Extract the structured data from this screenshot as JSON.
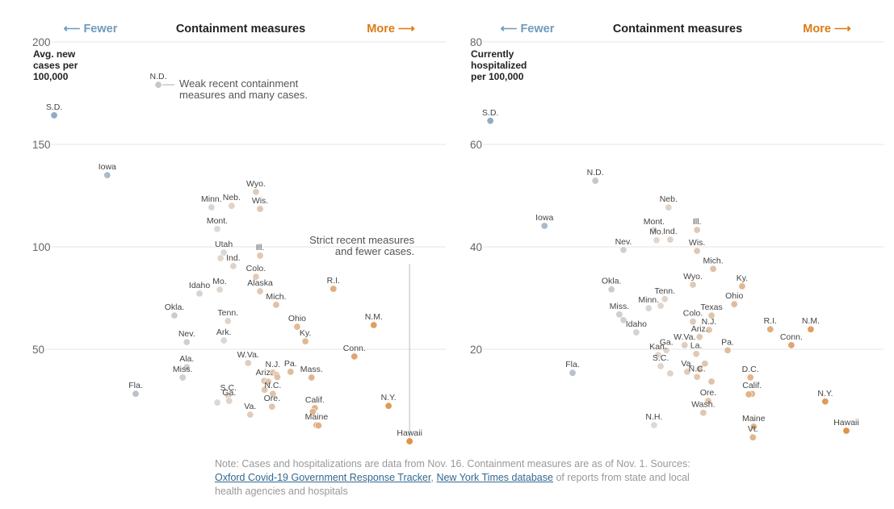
{
  "chart_data": [
    {
      "type": "scatter",
      "title": "Containment measures",
      "fewer_label": "⟵ Fewer",
      "more_label": "More ⟶",
      "xlabel": "Containment measures",
      "ylabel": "Avg. new cases per 100,000",
      "ylabel_lines": [
        "Avg. new",
        "cases per",
        "100,000"
      ],
      "ylim": [
        0,
        200
      ],
      "yticks": [
        50,
        100,
        150,
        200
      ],
      "xlim": [
        0,
        100
      ],
      "grid": true,
      "annotations": [
        {
          "lines": [
            "Weak recent containment",
            "measures and many cases."
          ],
          "anchor": "N.D.",
          "style": "left"
        },
        {
          "lines": [
            "Strict recent measures",
            "and fewer cases."
          ],
          "anchor": "Hawaii",
          "style": "vertical"
        }
      ],
      "points": [
        {
          "label": "S.D.",
          "x": 5.3,
          "y": 164.2,
          "show": true
        },
        {
          "label": "N.D.",
          "x": 30.6,
          "y": 179.1,
          "show": true
        },
        {
          "label": "Iowa",
          "x": 18.2,
          "y": 135.0,
          "show": true
        },
        {
          "label": "Minn.",
          "x": 43.5,
          "y": 119.3,
          "show": true
        },
        {
          "label": "Neb.",
          "x": 48.4,
          "y": 120.0,
          "show": true
        },
        {
          "label": "Wyo.",
          "x": 54.3,
          "y": 126.8,
          "show": true
        },
        {
          "label": "Wis.",
          "x": 55.3,
          "y": 118.5,
          "show": true
        },
        {
          "label": "Mont.",
          "x": 44.9,
          "y": 108.7,
          "show": true
        },
        {
          "label": "Utah",
          "x": 46.5,
          "y": 97.2,
          "show": true
        },
        {
          "label": "",
          "x": 45.7,
          "y": 94.5,
          "show": false
        },
        {
          "label": "Ind.",
          "x": 48.8,
          "y": 90.6,
          "show": true
        },
        {
          "label": "Ill.",
          "x": 55.3,
          "y": 95.7,
          "show": true
        },
        {
          "label": "Colo.",
          "x": 54.3,
          "y": 85.4,
          "show": true
        },
        {
          "label": "Alaska",
          "x": 55.3,
          "y": 78.3,
          "show": true
        },
        {
          "label": "Mo.",
          "x": 45.5,
          "y": 79.1,
          "show": true
        },
        {
          "label": "Idaho",
          "x": 40.6,
          "y": 77.2,
          "show": true
        },
        {
          "label": "Mich.",
          "x": 59.2,
          "y": 71.7,
          "show": true
        },
        {
          "label": "Okla.",
          "x": 34.5,
          "y": 66.5,
          "show": true
        },
        {
          "label": "Tenn.",
          "x": 47.5,
          "y": 63.8,
          "show": true
        },
        {
          "label": "Ohio",
          "x": 64.3,
          "y": 61.0,
          "show": true
        },
        {
          "label": "Ky.",
          "x": 66.3,
          "y": 53.9,
          "show": true
        },
        {
          "label": "R.I.",
          "x": 73.1,
          "y": 79.5,
          "show": true
        },
        {
          "label": "N.M.",
          "x": 82.9,
          "y": 61.8,
          "show": true
        },
        {
          "label": "Nev.",
          "x": 37.5,
          "y": 53.5,
          "show": true
        },
        {
          "label": "Ark.",
          "x": 46.5,
          "y": 54.3,
          "show": true
        },
        {
          "label": "Conn.",
          "x": 78.2,
          "y": 46.5,
          "show": true
        },
        {
          "label": "Ala.",
          "x": 37.5,
          "y": 41.3,
          "show": true
        },
        {
          "label": "Miss.",
          "x": 36.5,
          "y": 36.2,
          "show": true
        },
        {
          "label": "W.Va.",
          "x": 52.4,
          "y": 43.3,
          "show": true
        },
        {
          "label": "N.J.",
          "x": 58.4,
          "y": 38.6,
          "show": true
        },
        {
          "label": "",
          "x": 59.3,
          "y": 37.5,
          "show": false
        },
        {
          "label": "Pa.",
          "x": 62.7,
          "y": 39.0,
          "show": true
        },
        {
          "label": "Mass.",
          "x": 67.8,
          "y": 36.2,
          "show": true
        },
        {
          "label": "Ariz.",
          "x": 56.3,
          "y": 34.6,
          "show": true
        },
        {
          "label": "",
          "x": 57.3,
          "y": 34.2,
          "show": false
        },
        {
          "label": "",
          "x": 59.5,
          "y": 36.4,
          "show": false
        },
        {
          "label": "N.C.",
          "x": 58.4,
          "y": 28.3,
          "show": true
        },
        {
          "label": "",
          "x": 56.4,
          "y": 30.2,
          "show": false
        },
        {
          "label": "Fla.",
          "x": 25.1,
          "y": 28.3,
          "show": true
        },
        {
          "label": "S.C.",
          "x": 47.6,
          "y": 27.2,
          "show": true
        },
        {
          "label": "Ga.",
          "x": 47.8,
          "y": 24.8,
          "show": true
        },
        {
          "label": "",
          "x": 44.9,
          "y": 24.0,
          "show": false
        },
        {
          "label": "Ore.",
          "x": 58.2,
          "y": 22.0,
          "show": true
        },
        {
          "label": "Calif.",
          "x": 68.6,
          "y": 21.3,
          "show": true
        },
        {
          "label": "",
          "x": 68.1,
          "y": 19.5,
          "show": false
        },
        {
          "label": "N.Y.",
          "x": 86.5,
          "y": 22.4,
          "show": true
        },
        {
          "label": "Va.",
          "x": 52.9,
          "y": 18.1,
          "show": true
        },
        {
          "label": "Maine",
          "x": 69.0,
          "y": 13.0,
          "show": true
        },
        {
          "label": "",
          "x": 69.5,
          "y": 12.8,
          "show": false
        },
        {
          "label": "Hawaii",
          "x": 91.6,
          "y": 5.1,
          "show": true
        }
      ]
    },
    {
      "type": "scatter",
      "title": "Containment measures",
      "fewer_label": "⟵ Fewer",
      "more_label": "More ⟶",
      "xlabel": "Containment measures",
      "ylabel": "Currently hospitalized per 100,000",
      "ylabel_lines": [
        "Currently",
        "hospitalized",
        "per 100,000"
      ],
      "ylim": [
        0,
        80
      ],
      "yticks": [
        20,
        40,
        60,
        80
      ],
      "xlim": [
        0,
        100
      ],
      "grid": true,
      "annotations": [],
      "points": [
        {
          "label": "S.D.",
          "x": 5.3,
          "y": 64.6,
          "show": true
        },
        {
          "label": "N.D.",
          "x": 30.7,
          "y": 52.9,
          "show": true
        },
        {
          "label": "Iowa",
          "x": 18.4,
          "y": 44.1,
          "show": true
        },
        {
          "label": "Neb.",
          "x": 48.4,
          "y": 47.7,
          "show": true
        },
        {
          "label": "Mont.",
          "x": 44.9,
          "y": 43.3,
          "show": true
        },
        {
          "label": "Ill.",
          "x": 55.3,
          "y": 43.3,
          "show": true
        },
        {
          "label": "Mo.",
          "x": 45.5,
          "y": 41.3,
          "show": true
        },
        {
          "label": "Ind.",
          "x": 48.8,
          "y": 41.4,
          "show": true
        },
        {
          "label": "Nev.",
          "x": 37.5,
          "y": 39.4,
          "show": true
        },
        {
          "label": "Wis.",
          "x": 55.3,
          "y": 39.2,
          "show": true
        },
        {
          "label": "Mich.",
          "x": 59.2,
          "y": 35.7,
          "show": true
        },
        {
          "label": "Wyo.",
          "x": 54.3,
          "y": 32.6,
          "show": true
        },
        {
          "label": "Ky.",
          "x": 66.2,
          "y": 32.3,
          "show": true
        },
        {
          "label": "Okla.",
          "x": 34.6,
          "y": 31.7,
          "show": true
        },
        {
          "label": "Tenn.",
          "x": 47.5,
          "y": 29.8,
          "show": true
        },
        {
          "label": "Minn.",
          "x": 43.6,
          "y": 28.0,
          "show": true
        },
        {
          "label": "",
          "x": 46.5,
          "y": 28.5,
          "show": false
        },
        {
          "label": "Ohio",
          "x": 64.3,
          "y": 28.8,
          "show": true
        },
        {
          "label": "Miss.",
          "x": 36.5,
          "y": 26.8,
          "show": true
        },
        {
          "label": "",
          "x": 37.5,
          "y": 25.7,
          "show": false
        },
        {
          "label": "Texas",
          "x": 58.8,
          "y": 26.6,
          "show": true
        },
        {
          "label": "Colo.",
          "x": 54.3,
          "y": 25.4,
          "show": true
        },
        {
          "label": "N.J.",
          "x": 58.2,
          "y": 23.8,
          "show": true
        },
        {
          "label": "Idaho",
          "x": 40.6,
          "y": 23.3,
          "show": true
        },
        {
          "label": "Ariz.",
          "x": 55.9,
          "y": 22.4,
          "show": true
        },
        {
          "label": "R.I.",
          "x": 73.0,
          "y": 23.9,
          "show": true
        },
        {
          "label": "N.M.",
          "x": 82.8,
          "y": 23.9,
          "show": true
        },
        {
          "label": "W.Va.",
          "x": 52.3,
          "y": 20.8,
          "show": true
        },
        {
          "label": "Ga.",
          "x": 47.9,
          "y": 19.8,
          "show": true
        },
        {
          "label": "Conn.",
          "x": 78.1,
          "y": 20.8,
          "show": true
        },
        {
          "label": "Pa.",
          "x": 62.7,
          "y": 19.8,
          "show": true
        },
        {
          "label": "Kan.",
          "x": 45.9,
          "y": 18.9,
          "show": true
        },
        {
          "label": "La.",
          "x": 55.1,
          "y": 19.1,
          "show": true
        },
        {
          "label": "",
          "x": 57.2,
          "y": 17.2,
          "show": false
        },
        {
          "label": "S.C.",
          "x": 46.5,
          "y": 16.7,
          "show": true
        },
        {
          "label": "Va.",
          "x": 52.9,
          "y": 15.6,
          "show": true
        },
        {
          "label": "",
          "x": 48.8,
          "y": 15.3,
          "show": false
        },
        {
          "label": "",
          "x": 55.9,
          "y": 16.1,
          "show": false
        },
        {
          "label": "N.C.",
          "x": 55.3,
          "y": 14.6,
          "show": true
        },
        {
          "label": "",
          "x": 58.8,
          "y": 13.7,
          "show": false
        },
        {
          "label": "Fla.",
          "x": 25.2,
          "y": 15.4,
          "show": true
        },
        {
          "label": "D.C.",
          "x": 68.2,
          "y": 14.5,
          "show": true
        },
        {
          "label": "Calif.",
          "x": 68.6,
          "y": 11.3,
          "show": true
        },
        {
          "label": "",
          "x": 67.8,
          "y": 11.2,
          "show": false
        },
        {
          "label": "N.Y.",
          "x": 86.3,
          "y": 9.8,
          "show": true
        },
        {
          "label": "Ore.",
          "x": 58.0,
          "y": 9.9,
          "show": true
        },
        {
          "label": "Wash.",
          "x": 56.8,
          "y": 7.6,
          "show": true
        },
        {
          "label": "N.H.",
          "x": 44.9,
          "y": 5.2,
          "show": true
        },
        {
          "label": "Maine",
          "x": 69.0,
          "y": 4.9,
          "show": true
        },
        {
          "label": "Vt.",
          "x": 68.8,
          "y": 2.8,
          "show": true
        },
        {
          "label": "Hawaii",
          "x": 91.4,
          "y": 4.1,
          "show": true
        }
      ]
    }
  ],
  "colors": {
    "fewer": "#6f9bbd",
    "more": "#dd7a12",
    "title": "#222222",
    "tick": "#666666",
    "grid": "#e6e6e6",
    "label": "#444444",
    "annotation": "#555555"
  },
  "note": {
    "prefix": "Note: Cases and hospitalizations are data from Nov. 16. Containment measures are as of Nov. 1. Sources: ",
    "link1": "Oxford Covid-19 Government Response Tracker",
    "sep": ", ",
    "link2": "New York Times database",
    "suffix": " of reports from state and local health agencies and hospitals"
  }
}
